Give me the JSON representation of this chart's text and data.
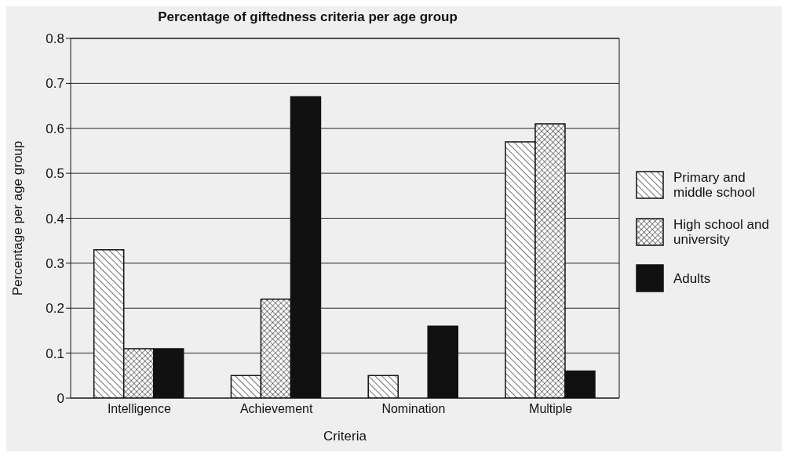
{
  "chart_data": {
    "type": "bar",
    "title": "Percentage of giftedness criteria per age group",
    "xlabel": "Criteria",
    "ylabel": "Percentage per age group",
    "categories": [
      "Intelligence",
      "Achievement",
      "Nomination",
      "Multiple"
    ],
    "series": [
      {
        "name": "Primary and middle school",
        "color": "#111111",
        "values": [
          0.33,
          0.05,
          0.05,
          0.57
        ]
      },
      {
        "name": "High school and university",
        "color": "#111111",
        "values": [
          0.11,
          0.22,
          0,
          0.61
        ]
      },
      {
        "name": "Adults",
        "color": "#111111",
        "values": [
          0.11,
          0.67,
          0.16,
          0.06
        ]
      }
    ],
    "ylim": [
      0,
      0.8
    ],
    "yticks": [
      0,
      0.1,
      0.2,
      0.3,
      0.4,
      0.5,
      0.6,
      0.7,
      0.8
    ],
    "grid": "y",
    "legend": "right"
  }
}
